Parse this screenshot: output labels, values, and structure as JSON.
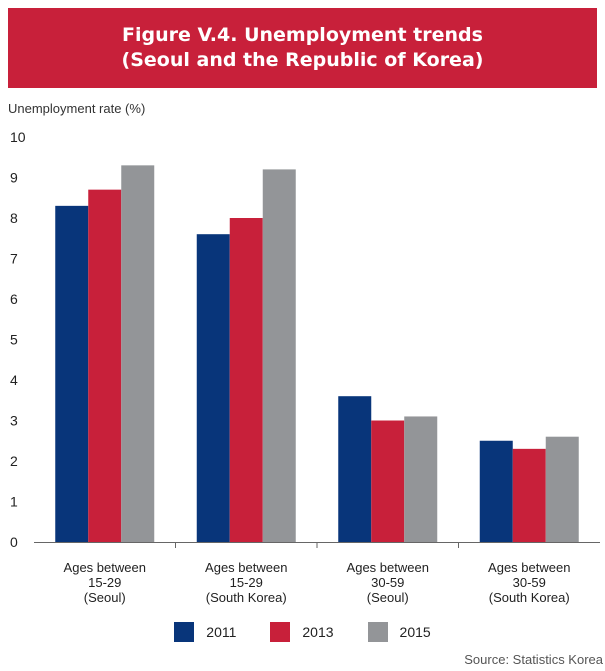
{
  "banner": {
    "title_line1": "Figure V.4. Unemployment trends",
    "title_line2": "(Seoul and the Republic of Korea)"
  },
  "source": "Source: Statistics Korea",
  "colors": {
    "banner": "#c8203a",
    "s2011": "#08357a",
    "s2013": "#c8203a",
    "s2015": "#939598"
  },
  "chart_data": {
    "type": "bar",
    "title": "",
    "ylabel": "Unemployment rate (%)",
    "xlabel": "",
    "ylim": [
      0,
      10
    ],
    "yticks": [
      "0",
      "1",
      "2",
      "3",
      "4",
      "5",
      "6",
      "7",
      "8",
      "9",
      "10"
    ],
    "grid": false,
    "legend_position": "bottom",
    "categories": [
      [
        "Ages between",
        "15-29",
        "(Seoul)"
      ],
      [
        "Ages between",
        "15-29",
        "(South Korea)"
      ],
      [
        "Ages between",
        "30-59",
        "(Seoul)"
      ],
      [
        "Ages between",
        "30-59",
        "(South Korea)"
      ]
    ],
    "series": [
      {
        "name": "2011",
        "color": "#08357a",
        "values": [
          8.3,
          7.6,
          3.6,
          2.5
        ]
      },
      {
        "name": "2013",
        "color": "#c8203a",
        "values": [
          8.7,
          8.0,
          3.0,
          2.3
        ]
      },
      {
        "name": "2015",
        "color": "#939598",
        "values": [
          9.3,
          9.2,
          3.1,
          2.6
        ]
      }
    ]
  }
}
